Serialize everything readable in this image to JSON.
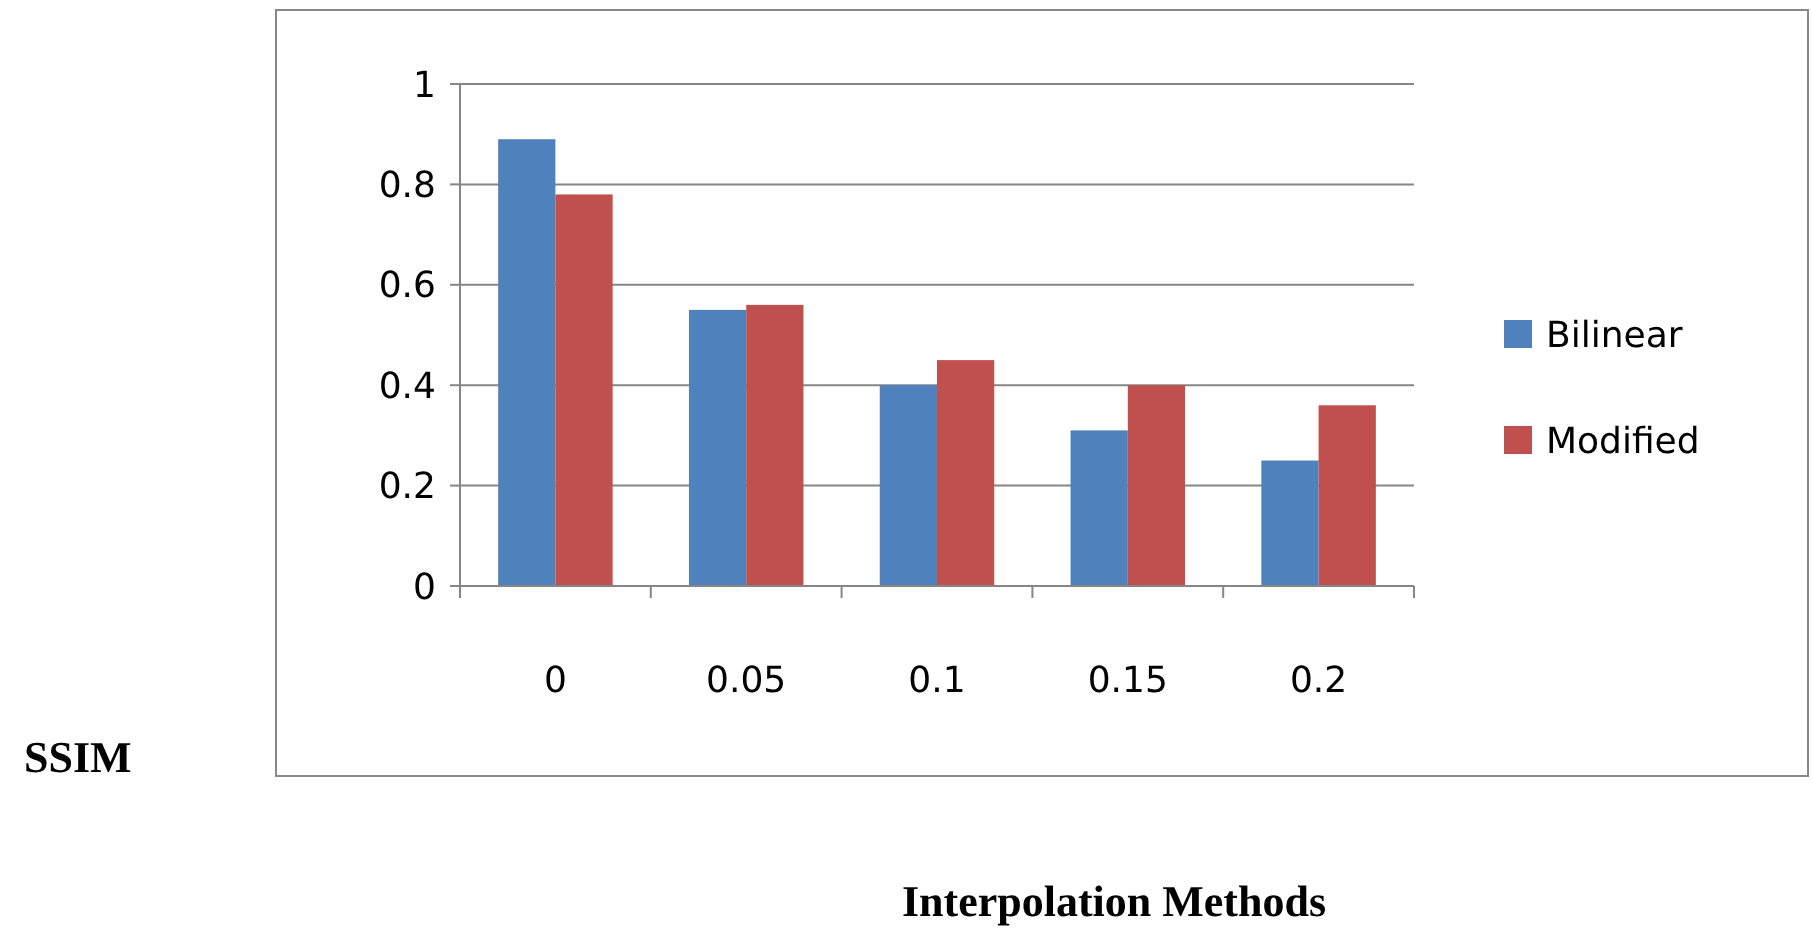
{
  "chart_data": {
    "type": "bar",
    "xlabel": "Interpolation Methods",
    "annotations": [
      "SSIM"
    ],
    "categories": [
      "0",
      "0.05",
      "0.1",
      "0.15",
      "0.2"
    ],
    "series": [
      {
        "name": "Bilinear",
        "color": "#4f81bd",
        "values": [
          0.89,
          0.55,
          0.4,
          0.31,
          0.25
        ]
      },
      {
        "name": "Modified",
        "color": "#c0504d",
        "values": [
          0.78,
          0.56,
          0.45,
          0.4,
          0.36
        ]
      }
    ],
    "ylim": [
      0,
      1
    ],
    "yticks": [
      0,
      0.2,
      0.4,
      0.6,
      0.8,
      1
    ],
    "grid": "y",
    "legend": "right"
  }
}
